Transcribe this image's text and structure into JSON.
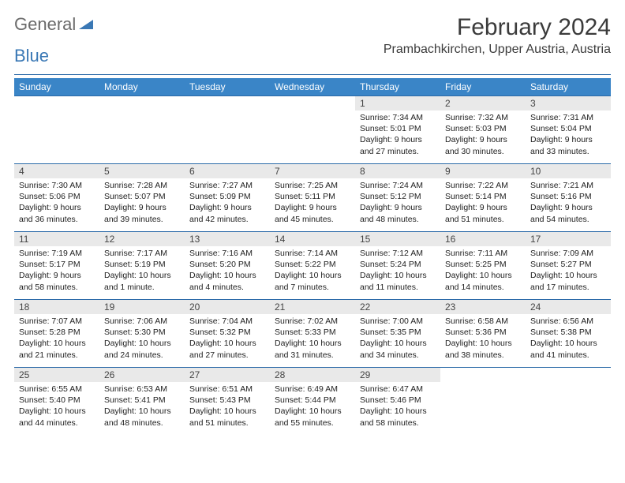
{
  "brand": {
    "general": "General",
    "blue": "Blue"
  },
  "title": "February 2024",
  "location": "Prambachkirchen, Upper Austria, Austria",
  "colors": {
    "header_bg": "#3a85c7",
    "header_text": "#ffffff",
    "rule": "#2b6aa8",
    "daybar_bg": "#e9e9e9",
    "body_text": "#222222",
    "logo_gray": "#6b6b6b",
    "logo_blue": "#3a78b5",
    "page_bg": "#ffffff"
  },
  "day_headers": [
    "Sunday",
    "Monday",
    "Tuesday",
    "Wednesday",
    "Thursday",
    "Friday",
    "Saturday"
  ],
  "calendar": {
    "first_weekday_index": 4,
    "days_in_month": 29,
    "days": [
      {
        "n": 1,
        "sunrise": "7:34 AM",
        "sunset": "5:01 PM",
        "daylight": "9 hours and 27 minutes."
      },
      {
        "n": 2,
        "sunrise": "7:32 AM",
        "sunset": "5:03 PM",
        "daylight": "9 hours and 30 minutes."
      },
      {
        "n": 3,
        "sunrise": "7:31 AM",
        "sunset": "5:04 PM",
        "daylight": "9 hours and 33 minutes."
      },
      {
        "n": 4,
        "sunrise": "7:30 AM",
        "sunset": "5:06 PM",
        "daylight": "9 hours and 36 minutes."
      },
      {
        "n": 5,
        "sunrise": "7:28 AM",
        "sunset": "5:07 PM",
        "daylight": "9 hours and 39 minutes."
      },
      {
        "n": 6,
        "sunrise": "7:27 AM",
        "sunset": "5:09 PM",
        "daylight": "9 hours and 42 minutes."
      },
      {
        "n": 7,
        "sunrise": "7:25 AM",
        "sunset": "5:11 PM",
        "daylight": "9 hours and 45 minutes."
      },
      {
        "n": 8,
        "sunrise": "7:24 AM",
        "sunset": "5:12 PM",
        "daylight": "9 hours and 48 minutes."
      },
      {
        "n": 9,
        "sunrise": "7:22 AM",
        "sunset": "5:14 PM",
        "daylight": "9 hours and 51 minutes."
      },
      {
        "n": 10,
        "sunrise": "7:21 AM",
        "sunset": "5:16 PM",
        "daylight": "9 hours and 54 minutes."
      },
      {
        "n": 11,
        "sunrise": "7:19 AM",
        "sunset": "5:17 PM",
        "daylight": "9 hours and 58 minutes."
      },
      {
        "n": 12,
        "sunrise": "7:17 AM",
        "sunset": "5:19 PM",
        "daylight": "10 hours and 1 minute."
      },
      {
        "n": 13,
        "sunrise": "7:16 AM",
        "sunset": "5:20 PM",
        "daylight": "10 hours and 4 minutes."
      },
      {
        "n": 14,
        "sunrise": "7:14 AM",
        "sunset": "5:22 PM",
        "daylight": "10 hours and 7 minutes."
      },
      {
        "n": 15,
        "sunrise": "7:12 AM",
        "sunset": "5:24 PM",
        "daylight": "10 hours and 11 minutes."
      },
      {
        "n": 16,
        "sunrise": "7:11 AM",
        "sunset": "5:25 PM",
        "daylight": "10 hours and 14 minutes."
      },
      {
        "n": 17,
        "sunrise": "7:09 AM",
        "sunset": "5:27 PM",
        "daylight": "10 hours and 17 minutes."
      },
      {
        "n": 18,
        "sunrise": "7:07 AM",
        "sunset": "5:28 PM",
        "daylight": "10 hours and 21 minutes."
      },
      {
        "n": 19,
        "sunrise": "7:06 AM",
        "sunset": "5:30 PM",
        "daylight": "10 hours and 24 minutes."
      },
      {
        "n": 20,
        "sunrise": "7:04 AM",
        "sunset": "5:32 PM",
        "daylight": "10 hours and 27 minutes."
      },
      {
        "n": 21,
        "sunrise": "7:02 AM",
        "sunset": "5:33 PM",
        "daylight": "10 hours and 31 minutes."
      },
      {
        "n": 22,
        "sunrise": "7:00 AM",
        "sunset": "5:35 PM",
        "daylight": "10 hours and 34 minutes."
      },
      {
        "n": 23,
        "sunrise": "6:58 AM",
        "sunset": "5:36 PM",
        "daylight": "10 hours and 38 minutes."
      },
      {
        "n": 24,
        "sunrise": "6:56 AM",
        "sunset": "5:38 PM",
        "daylight": "10 hours and 41 minutes."
      },
      {
        "n": 25,
        "sunrise": "6:55 AM",
        "sunset": "5:40 PM",
        "daylight": "10 hours and 44 minutes."
      },
      {
        "n": 26,
        "sunrise": "6:53 AM",
        "sunset": "5:41 PM",
        "daylight": "10 hours and 48 minutes."
      },
      {
        "n": 27,
        "sunrise": "6:51 AM",
        "sunset": "5:43 PM",
        "daylight": "10 hours and 51 minutes."
      },
      {
        "n": 28,
        "sunrise": "6:49 AM",
        "sunset": "5:44 PM",
        "daylight": "10 hours and 55 minutes."
      },
      {
        "n": 29,
        "sunrise": "6:47 AM",
        "sunset": "5:46 PM",
        "daylight": "10 hours and 58 minutes."
      }
    ]
  },
  "labels": {
    "sunrise_prefix": "Sunrise: ",
    "sunset_prefix": "Sunset: ",
    "daylight_prefix": "Daylight: "
  }
}
